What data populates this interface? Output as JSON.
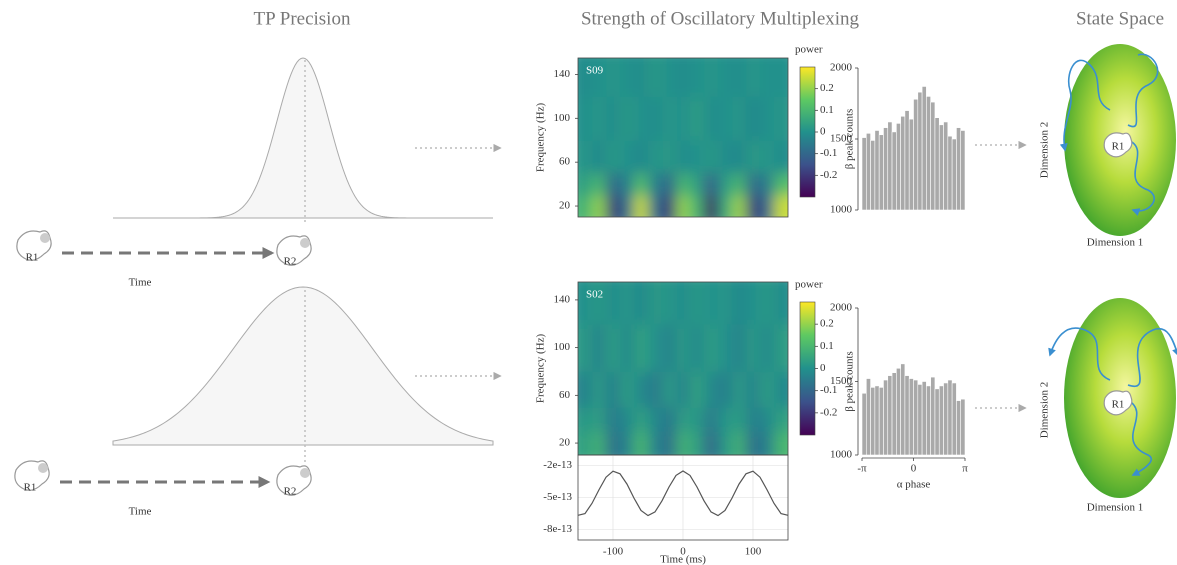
{
  "titles": {
    "left": "TP Precision",
    "middle": "Strength of Oscillatory Multiplexing",
    "right": "State Space"
  },
  "timing": {
    "rows": [
      {
        "start": "R1",
        "end": "R2",
        "axis": "Time"
      },
      {
        "start": "R1",
        "end": "R2",
        "axis": "Time"
      }
    ]
  },
  "state_space": {
    "rows": [
      {
        "y_axis": "Dimension 2",
        "x_axis": "Dimension 1",
        "start": "R1"
      },
      {
        "y_axis": "Dimension 2",
        "x_axis": "Dimension 1",
        "start": "R1"
      }
    ]
  },
  "chart_data": [
    {
      "type": "heatmap",
      "title": "S09",
      "ylabel": "Frequency (Hz)",
      "colormap": "viridis",
      "xlim": [
        -150,
        150
      ],
      "ylim": [
        10,
        155
      ],
      "yticks": [
        20,
        60,
        100,
        140
      ],
      "xbins": [
        -150,
        -130,
        -110,
        -90,
        -70,
        -50,
        -30,
        -10,
        10,
        30,
        50,
        70,
        90,
        110,
        130,
        150
      ],
      "ybins": [
        10,
        30,
        50,
        80,
        120,
        155
      ],
      "z": [
        [
          0.09,
          0.2,
          -0.2,
          -0.08,
          0.25,
          -0.08,
          -0.2,
          0.2,
          0.09,
          -0.25,
          0.06,
          0.21,
          -0.19,
          -0.1,
          0.25
        ],
        [
          0.04,
          0.1,
          -0.1,
          -0.04,
          0.12,
          -0.04,
          -0.1,
          0.1,
          0.04,
          -0.12,
          0.03,
          0.1,
          -0.09,
          -0.05,
          0.12
        ],
        [
          0.01,
          -0.02,
          0.02,
          0.0,
          -0.02,
          0.01,
          0.02,
          -0.01,
          0.0,
          0.02,
          -0.01,
          -0.02,
          0.02,
          0.01,
          -0.01
        ],
        [
          0.0,
          0.01,
          -0.01,
          0.02,
          0.0,
          -0.01,
          0.01,
          0.0,
          0.03,
          -0.01,
          0.0,
          0.01,
          -0.02,
          0.0,
          0.01
        ],
        [
          -0.01,
          0.0,
          0.01,
          0.0,
          -0.01,
          0.02,
          0.0,
          -0.01,
          0.0,
          0.01,
          0.0,
          -0.01,
          0.01,
          0.0,
          0.0
        ]
      ],
      "colorbar": {
        "label": "power",
        "clim": [
          -0.3,
          0.3
        ],
        "ticks": [
          -0.2,
          -0.1,
          0,
          0.1,
          0.2
        ]
      }
    },
    {
      "type": "histogram",
      "ylabel": "β peak counts",
      "color": "#a9a9a9",
      "xlim": [
        -3.142,
        3.142
      ],
      "ylim": [
        1000,
        2000
      ],
      "yticks": [
        1000,
        1500,
        2000
      ],
      "bins": [
        -3.142,
        -2.88,
        -2.618,
        -2.356,
        -2.094,
        -1.833,
        -1.571,
        -1.309,
        -1.047,
        -0.785,
        -0.524,
        -0.262,
        0,
        0.262,
        0.524,
        0.785,
        1.047,
        1.309,
        1.571,
        1.833,
        2.094,
        2.356,
        2.618,
        2.88,
        3.142
      ],
      "values": [
        1510,
        1540,
        1490,
        1560,
        1530,
        1580,
        1620,
        1550,
        1610,
        1660,
        1700,
        1640,
        1780,
        1830,
        1870,
        1800,
        1760,
        1650,
        1600,
        1620,
        1520,
        1500,
        1580,
        1560
      ]
    },
    {
      "type": "heatmap",
      "title": "S02",
      "ylabel": "Frequency (Hz)",
      "colormap": "viridis",
      "xlim": [
        -150,
        150
      ],
      "ylim": [
        10,
        155
      ],
      "yticks": [
        20,
        60,
        100,
        140
      ],
      "xbins": [
        -150,
        -130,
        -110,
        -90,
        -70,
        -50,
        -30,
        -10,
        10,
        30,
        50,
        70,
        90,
        110,
        130,
        150
      ],
      "ybins": [
        10,
        30,
        50,
        80,
        120,
        155
      ],
      "z": [
        [
          0.04,
          0.08,
          -0.08,
          -0.03,
          0.1,
          -0.03,
          -0.08,
          0.08,
          0.04,
          -0.1,
          0.02,
          0.08,
          -0.08,
          -0.04,
          0.1
        ],
        [
          0.02,
          0.03,
          -0.05,
          -0.02,
          0.04,
          -0.02,
          -0.06,
          0.03,
          0.02,
          -0.05,
          0.01,
          0.03,
          -0.04,
          -0.02,
          0.04
        ],
        [
          -0.03,
          0.02,
          -0.04,
          0.03,
          -0.02,
          -0.05,
          0.02,
          -0.03,
          0.04,
          -0.02,
          -0.04,
          0.02,
          -0.03,
          0.03,
          -0.02
        ],
        [
          0.02,
          -0.03,
          0.03,
          -0.02,
          0.04,
          0.0,
          -0.03,
          0.02,
          -0.02,
          0.03,
          0.0,
          -0.03,
          0.02,
          -0.02,
          0.03
        ],
        [
          0.0,
          0.02,
          -0.01,
          0.01,
          -0.02,
          0.02,
          0.01,
          -0.01,
          0.02,
          0.0,
          0.01,
          -0.02,
          0.0,
          0.02,
          -0.01
        ]
      ],
      "colorbar": {
        "label": "power",
        "clim": [
          -0.3,
          0.3
        ],
        "ticks": [
          -0.2,
          -0.1,
          0,
          0.1,
          0.2
        ]
      }
    },
    {
      "type": "histogram",
      "ylabel": "β peak counts",
      "xlabel": "α phase",
      "color": "#a9a9a9",
      "xlim": [
        -3.142,
        3.142
      ],
      "ylim": [
        1000,
        2000
      ],
      "yticks": [
        1000,
        1500,
        2000
      ],
      "xticks": [
        {
          "value": -3.142,
          "label": "-π"
        },
        0,
        {
          "value": 3.142,
          "label": "π"
        }
      ],
      "bins": [
        -3.142,
        -2.88,
        -2.618,
        -2.356,
        -2.094,
        -1.833,
        -1.571,
        -1.309,
        -1.047,
        -0.785,
        -0.524,
        -0.262,
        0,
        0.262,
        0.524,
        0.785,
        1.047,
        1.309,
        1.571,
        1.833,
        2.094,
        2.356,
        2.618,
        2.88,
        3.142
      ],
      "values": [
        1420,
        1520,
        1460,
        1470,
        1460,
        1510,
        1540,
        1560,
        1590,
        1620,
        1540,
        1520,
        1510,
        1480,
        1500,
        1470,
        1530,
        1450,
        1470,
        1490,
        1510,
        1490,
        1370,
        1380
      ]
    },
    {
      "type": "line",
      "xlabel": "Time (ms)",
      "color": "#555555",
      "grid": true,
      "xlim": [
        -150,
        150
      ],
      "xticks": [
        -100,
        0,
        100
      ],
      "ylim": [
        -9e-13,
        -1e-13
      ],
      "yticks": [
        {
          "value": -2e-13,
          "label": "-2e-13"
        },
        {
          "value": -5e-13,
          "label": "-5e-13"
        },
        {
          "value": -8e-13,
          "label": "-8e-13"
        }
      ],
      "x": [
        -150,
        -140,
        -130,
        -120,
        -110,
        -100,
        -90,
        -80,
        -70,
        -60,
        -50,
        -40,
        -30,
        -20,
        -10,
        0,
        10,
        20,
        30,
        40,
        50,
        60,
        70,
        80,
        90,
        100,
        110,
        120,
        130,
        140,
        150
      ],
      "values": [
        -6.68e-13,
        -6.51e-13,
        -5.55e-13,
        -4.27e-13,
        -3.09e-13,
        -2.52e-13,
        -2.77e-13,
        -3.74e-13,
        -5.06e-13,
        -6.22e-13,
        -6.7e-13,
        -6.36e-13,
        -5.31e-13,
        -4.01e-13,
        -2.92e-13,
        -2.5e-13,
        -2.92e-13,
        -4.01e-13,
        -5.31e-13,
        -6.36e-13,
        -6.7e-13,
        -6.22e-13,
        -5.06e-13,
        -3.74e-13,
        -2.77e-13,
        -2.52e-13,
        -3.09e-13,
        -4.27e-13,
        -5.55e-13,
        -6.51e-13,
        -6.68e-13
      ]
    }
  ]
}
